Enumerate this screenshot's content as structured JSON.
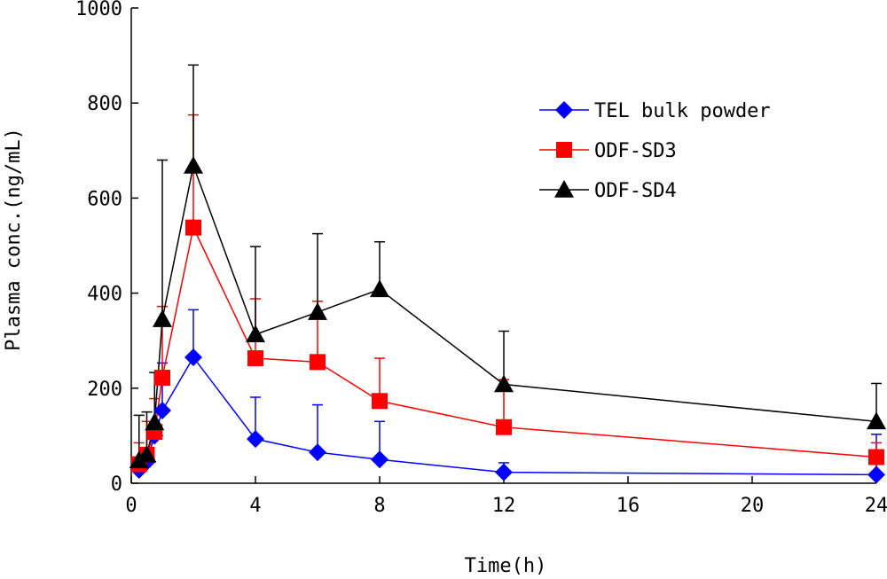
{
  "chart_data": {
    "type": "line",
    "xlabel": "Time(h)",
    "ylabel": "Plasma conc.(ng/mL)",
    "xlim": [
      0,
      24
    ],
    "ylim": [
      0,
      1000
    ],
    "x_ticks": [
      "0",
      "4",
      "8",
      "12",
      "16",
      "20",
      "24"
    ],
    "y_ticks": [
      "0",
      "200",
      "400",
      "600",
      "800",
      "1000"
    ],
    "grid": false,
    "legend_position": "top-right",
    "error_bars": "upper",
    "series": [
      {
        "name": "TEL bulk powder",
        "color": "#0000FF",
        "marker": "diamond",
        "x": [
          0.25,
          0.5,
          0.75,
          1,
          2,
          4,
          6,
          8,
          12,
          24
        ],
        "y": [
          28,
          45,
          100,
          153,
          265,
          93,
          65,
          50,
          23,
          18
        ],
        "error": [
          10,
          15,
          30,
          100,
          100,
          88,
          100,
          80,
          20,
          85
        ]
      },
      {
        "name": "ODF-SD3",
        "color": "#FF0000",
        "marker": "square",
        "x": [
          0.25,
          0.5,
          0.75,
          1,
          2,
          4,
          6,
          8,
          12,
          24
        ],
        "y": [
          40,
          60,
          108,
          222,
          538,
          263,
          255,
          173,
          118,
          55
        ],
        "error": [
          45,
          70,
          70,
          150,
          237,
          125,
          128,
          90,
          100,
          30
        ]
      },
      {
        "name": "ODF-SD4",
        "color": "#000000",
        "marker": "triangle",
        "x": [
          0.25,
          0.5,
          0.75,
          1,
          2,
          4,
          6,
          8,
          12,
          24
        ],
        "y": [
          48,
          60,
          128,
          345,
          668,
          313,
          360,
          408,
          208,
          130
        ],
        "error": [
          95,
          90,
          105,
          335,
          212,
          185,
          165,
          100,
          112,
          80
        ]
      }
    ]
  }
}
